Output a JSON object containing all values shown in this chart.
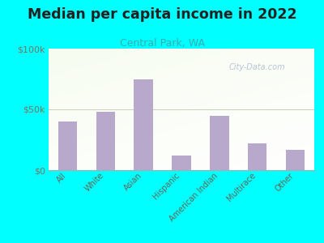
{
  "title": "Median per capita income in 2022",
  "subtitle": "Central Park, WA",
  "categories": [
    "All",
    "White",
    "Asian",
    "Hispanic",
    "American Indian",
    "Multirace",
    "Other"
  ],
  "values": [
    40000,
    48000,
    75000,
    12000,
    45000,
    22000,
    17000
  ],
  "bar_color": "#b8a9cc",
  "background_outer": "#00FFFF",
  "title_color": "#222222",
  "subtitle_color": "#3aaeae",
  "tick_label_color": "#666655",
  "ytick_label_color": "#777766",
  "ylim": [
    0,
    100000
  ],
  "yticks": [
    0,
    50000,
    100000
  ],
  "ytick_labels": [
    "$0",
    "$50k",
    "$100k"
  ],
  "watermark": "City-Data.com",
  "watermark_color": "#aabbcc",
  "gridline_color": "#ccccbb",
  "bottom_line_color": "#999988"
}
